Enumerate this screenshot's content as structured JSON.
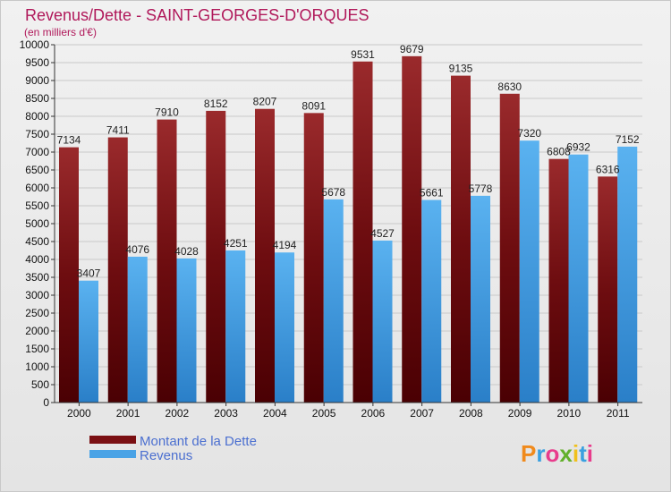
{
  "chart_data": {
    "type": "bar",
    "title": "Revenus/Dette - SAINT-GEORGES-D'ORQUES",
    "subtitle": "(en milliers d'€)",
    "categories": [
      "2000",
      "2001",
      "2002",
      "2003",
      "2004",
      "2005",
      "2006",
      "2007",
      "2008",
      "2009",
      "2010",
      "2011"
    ],
    "series": [
      {
        "name": "Montant de la Dette",
        "color": "#7a0f12",
        "values": [
          7134,
          7411,
          7910,
          8152,
          8207,
          8091,
          9531,
          9679,
          9135,
          8630,
          6808,
          6316
        ]
      },
      {
        "name": "Revenus",
        "color": "#4aa3e6",
        "values": [
          3407,
          4076,
          4028,
          4251,
          4194,
          5678,
          4527,
          5661,
          5778,
          7320,
          6932,
          7152
        ]
      }
    ],
    "ylim": [
      0,
      10000
    ],
    "ytick_step": 500,
    "grid": true,
    "legend_position": "bottom-left"
  },
  "logo": {
    "text": "Proxiti",
    "colors": [
      "#f08a1c",
      "#3aa0e0",
      "#e83c8c",
      "#62b02a",
      "#f0c01c",
      "#3aa0e0",
      "#e83c8c"
    ]
  }
}
